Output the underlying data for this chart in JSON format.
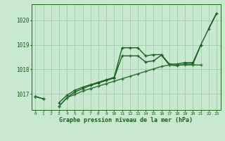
{
  "title": "Graphe pression niveau de la mer (hPa)",
  "xlabel_ticks": [
    0,
    1,
    2,
    3,
    4,
    5,
    6,
    7,
    8,
    9,
    10,
    11,
    12,
    13,
    14,
    15,
    16,
    17,
    18,
    19,
    20,
    21,
    22,
    23
  ],
  "ylim": [
    1016.35,
    1020.65
  ],
  "yticks": [
    1017,
    1018,
    1019,
    1020
  ],
  "bg_color": "#c8e8d0",
  "grid_color": "#98c8a8",
  "lines": [
    {
      "y": [
        1016.9,
        1016.8,
        null,
        1016.65,
        1016.95,
        1017.15,
        1017.28,
        1017.38,
        1017.48,
        1017.58,
        1017.68,
        1018.88,
        1018.88,
        1018.88,
        1018.55,
        1018.6,
        1018.6,
        1018.22,
        1018.22,
        1018.28,
        1018.28,
        1019.0,
        1019.65,
        1020.28
      ],
      "color": "#1a6020",
      "lw": 1.0,
      "marker": "+",
      "ms": 3.5,
      "mew": 0.9
    },
    {
      "y": [
        1016.9,
        1016.8,
        null,
        1016.5,
        1016.85,
        1017.08,
        1017.22,
        1017.35,
        1017.45,
        1017.55,
        1017.65,
        1018.55,
        1018.55,
        1018.55,
        1018.3,
        1018.35,
        1018.58,
        1018.18,
        1018.15,
        1018.22,
        1018.22,
        1018.98,
        null,
        null
      ],
      "color": "#1a6020",
      "lw": 1.0,
      "marker": "+",
      "ms": 3.5,
      "mew": 0.9
    },
    {
      "y": [
        1016.9,
        null,
        null,
        1016.5,
        1016.85,
        1016.98,
        1017.12,
        1017.22,
        1017.32,
        1017.42,
        1017.52,
        1017.62,
        1017.72,
        1017.82,
        1017.92,
        1018.02,
        1018.12,
        1018.18,
        1018.18,
        1018.18,
        1018.18,
        1018.18,
        null,
        null
      ],
      "color": "#2a7030",
      "lw": 1.0,
      "marker": "+",
      "ms": 3.5,
      "mew": 0.9
    },
    {
      "y": [
        1016.9,
        null,
        null,
        null,
        null,
        null,
        null,
        null,
        null,
        null,
        null,
        null,
        null,
        null,
        null,
        null,
        null,
        null,
        null,
        null,
        null,
        null,
        1019.65,
        1020.28
      ],
      "color": "#1a6020",
      "lw": 1.2,
      "marker": null,
      "ms": 0,
      "mew": 0
    }
  ]
}
